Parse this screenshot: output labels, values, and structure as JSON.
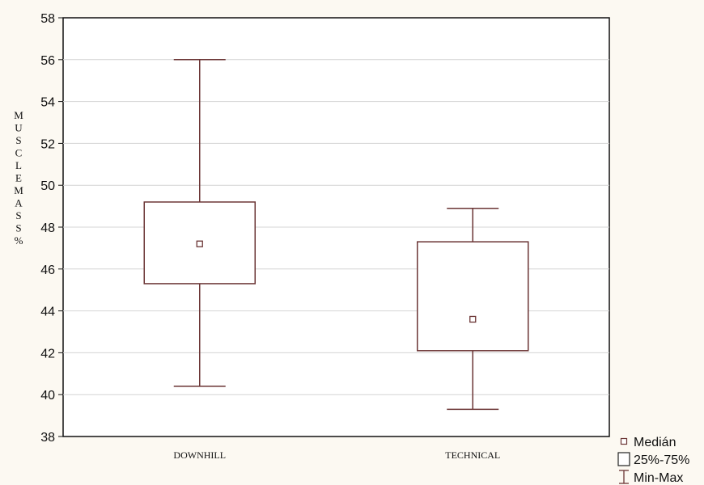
{
  "chart_data": {
    "type": "box",
    "ylabel": "MUSCLEMASS%",
    "ylim": [
      38,
      58
    ],
    "yticks": [
      "38",
      "40",
      "42",
      "44",
      "46",
      "48",
      "50",
      "52",
      "54",
      "56",
      "58"
    ],
    "grid": true,
    "legend_position": "bottom-right",
    "categories": [
      "DOWNHILL",
      "TECHNICAL"
    ],
    "boxes": [
      {
        "category": "DOWNHILL",
        "min": 40.4,
        "q1": 45.3,
        "median": 47.2,
        "q3": 49.2,
        "max": 56.0
      },
      {
        "category": "TECHNICAL",
        "min": 39.3,
        "q1": 42.1,
        "median": 43.6,
        "q3": 47.3,
        "max": 48.9
      }
    ],
    "legend": [
      {
        "key": "median",
        "label": "Medián"
      },
      {
        "key": "box",
        "label": "25%-75%"
      },
      {
        "key": "whisker",
        "label": "Min-Max"
      }
    ],
    "colors": {
      "plot_bg": "#ffffff",
      "page_bg": "#fcf9f2",
      "box_stroke": "#6b3535",
      "grid": "#d4d4d4",
      "axis": "#111111"
    }
  }
}
